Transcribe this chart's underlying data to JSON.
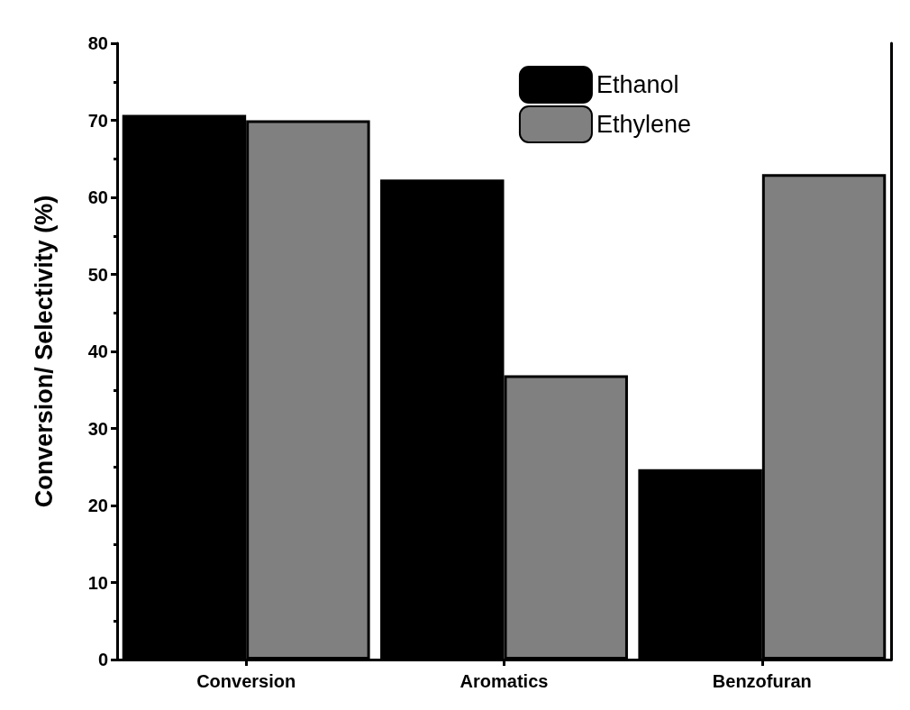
{
  "chart_data": {
    "type": "bar",
    "ylabel": "Conversion/ Selectivity (%)",
    "categories": [
      "Conversion",
      "Aromatics",
      "Benzofuran"
    ],
    "series": [
      {
        "name": "Ethanol",
        "color": "#000000",
        "values": [
          70.7,
          62.3,
          24.7
        ]
      },
      {
        "name": "Ethylene",
        "color": "#808080",
        "values": [
          70.0,
          36.9,
          63.0
        ]
      }
    ],
    "ylim": [
      0,
      80
    ],
    "yticks": [
      0,
      10,
      20,
      30,
      40,
      50,
      60,
      70,
      80
    ],
    "grid": false,
    "legend": "top right"
  }
}
